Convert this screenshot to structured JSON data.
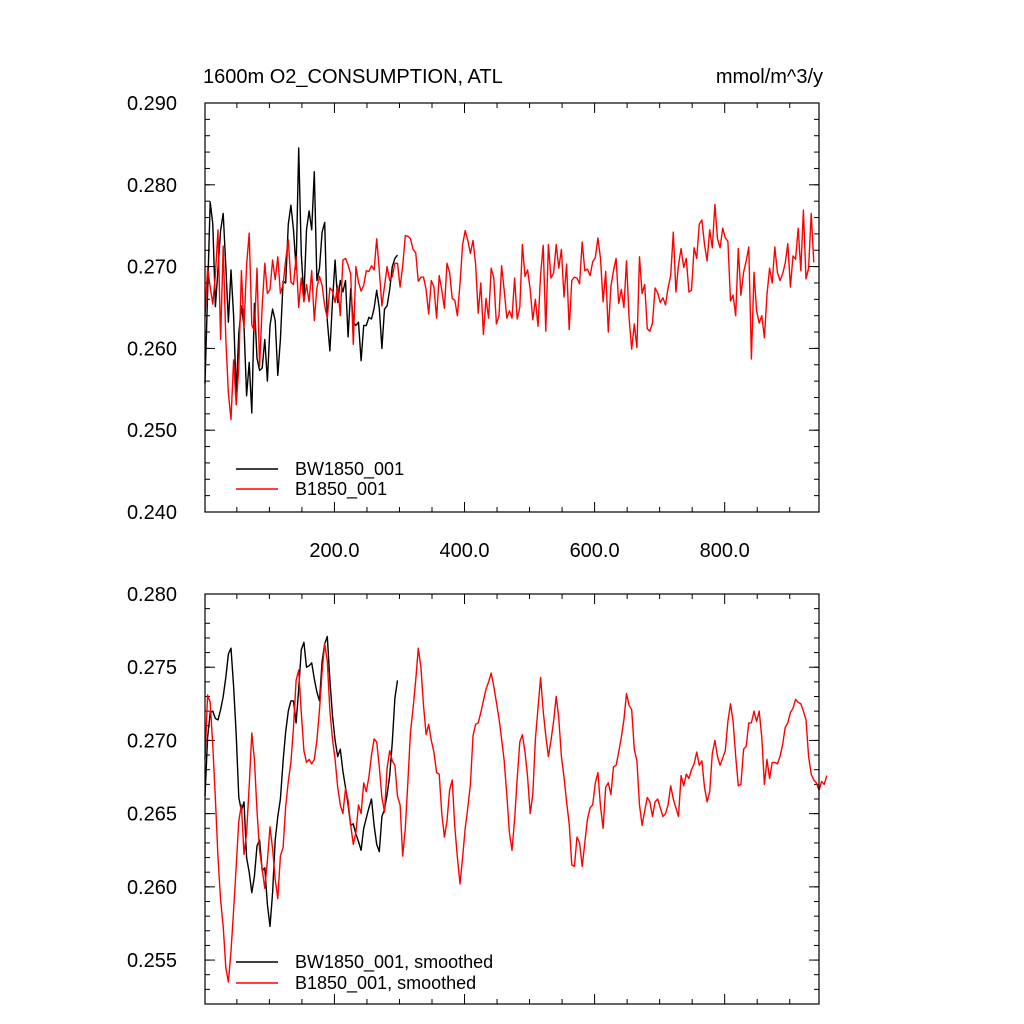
{
  "chart_data": [
    {
      "type": "line",
      "title_left": "1600m O2_CONSUMPTION, ATL",
      "title_right": "mmol/m^3/y",
      "xlim": [
        1,
        945
      ],
      "ylim": [
        0.24,
        0.29
      ],
      "x_ticks": [
        200,
        400,
        600,
        800
      ],
      "x_tick_labels": [
        "200.0",
        "400.0",
        "600.0",
        "800.0"
      ],
      "y_ticks": [
        0.24,
        0.25,
        0.26,
        0.27,
        0.28,
        0.29
      ],
      "y_tick_labels": [
        "0.240",
        "0.250",
        "0.260",
        "0.270",
        "0.280",
        "0.290"
      ],
      "legend_position": "bottom-left",
      "series": [
        {
          "name": "BW1850_001",
          "color": "#000000",
          "x_start": 1,
          "x_step": 4,
          "values": [
            0.2557,
            0.2668,
            0.2779,
            0.2752,
            0.2651,
            0.2697,
            0.2744,
            0.2765,
            0.2701,
            0.2632,
            0.2696,
            0.264,
            0.2545,
            0.2618,
            0.2652,
            0.2627,
            0.2542,
            0.2583,
            0.2521,
            0.2655,
            0.2588,
            0.2573,
            0.2576,
            0.2611,
            0.256,
            0.2628,
            0.2648,
            0.2634,
            0.2567,
            0.2611,
            0.2682,
            0.268,
            0.2752,
            0.2775,
            0.2745,
            0.2697,
            0.2845,
            0.2715,
            0.2662,
            0.2745,
            0.2768,
            0.2745,
            0.2816,
            0.2683,
            0.2698,
            0.2742,
            0.2754,
            0.2634,
            0.2597,
            0.2658,
            0.2708,
            0.2656,
            0.2683,
            0.2669,
            0.2683,
            0.2614,
            0.2673,
            0.2632,
            0.2628,
            0.2632,
            0.2585,
            0.2628,
            0.2628,
            0.2638,
            0.2636,
            0.2649,
            0.2671,
            0.2649,
            0.26,
            0.2648,
            0.2652,
            0.2672,
            0.27,
            0.271,
            0.2714
          ]
        },
        {
          "name": "B1850_001",
          "color": "#ff0000",
          "x_start": 1,
          "x_step": 4,
          "values": [
            0.2639,
            0.2698,
            0.2675,
            0.2654,
            0.269,
            0.2745,
            0.2611,
            0.2725,
            0.2612,
            0.2545,
            0.2513,
            0.2586,
            0.2531,
            0.2576,
            0.2695,
            0.2626,
            0.2702,
            0.2741,
            0.2629,
            0.2621,
            0.2698,
            0.2578,
            0.2652,
            0.2704,
            0.2667,
            0.2672,
            0.2708,
            0.2684,
            0.2712,
            0.2667,
            0.2678,
            0.2708,
            0.2733,
            0.2681,
            0.2678,
            0.2712,
            0.265,
            0.2686,
            0.2657,
            0.2678,
            0.2657,
            0.2695,
            0.2634,
            0.2674,
            0.2688,
            0.2677,
            0.2652,
            0.2637,
            0.2674,
            0.267,
            0.2656,
            0.2677,
            0.264,
            0.2708,
            0.271,
            0.2702,
            0.2691,
            0.2605,
            0.27,
            0.2681,
            0.267,
            0.2677,
            0.2695,
            0.2694,
            0.2701,
            0.2696,
            0.2734,
            0.2695,
            0.2652,
            0.2676,
            0.27,
            0.2683,
            0.2688,
            0.2704,
            0.2704,
            0.2675,
            0.2701,
            0.2738,
            0.2737,
            0.2734,
            0.2721,
            0.2717,
            0.2682,
            0.2687,
            0.2687,
            0.2672,
            0.2642,
            0.2683,
            0.2675,
            0.2637,
            0.2689,
            0.2671,
            0.2649,
            0.2704,
            0.2693,
            0.2661,
            0.2659,
            0.264,
            0.2679,
            0.2727,
            0.2744,
            0.2732,
            0.2716,
            0.2732,
            0.2703,
            0.2643,
            0.268,
            0.2617,
            0.2661,
            0.2637,
            0.2698,
            0.2686,
            0.263,
            0.264,
            0.2701,
            0.2671,
            0.2637,
            0.2646,
            0.2637,
            0.2686,
            0.2636,
            0.265,
            0.2727,
            0.2688,
            0.2696,
            0.2672,
            0.2635,
            0.266,
            0.2627,
            0.269,
            0.2726,
            0.2621,
            0.2727,
            0.2686,
            0.2692,
            0.2727,
            0.2698,
            0.2721,
            0.2663,
            0.2703,
            0.2623,
            0.2683,
            0.2687,
            0.2686,
            0.2679,
            0.273,
            0.2695,
            0.2697,
            0.2689,
            0.2706,
            0.2711,
            0.2735,
            0.271,
            0.2657,
            0.2694,
            0.262,
            0.2676,
            0.2695,
            0.271,
            0.2655,
            0.2672,
            0.265,
            0.2707,
            0.2637,
            0.2599,
            0.263,
            0.2601,
            0.2712,
            0.2667,
            0.2678,
            0.2624,
            0.2621,
            0.2631,
            0.2674,
            0.2668,
            0.2656,
            0.2662,
            0.2653,
            0.2674,
            0.2689,
            0.2742,
            0.2669,
            0.2702,
            0.2722,
            0.2699,
            0.271,
            0.2669,
            0.2671,
            0.2723,
            0.271,
            0.2752,
            0.2757,
            0.2727,
            0.2707,
            0.2745,
            0.2723,
            0.2776,
            0.2734,
            0.2723,
            0.2747,
            0.2735,
            0.2731,
            0.2658,
            0.2665,
            0.264,
            0.2722,
            0.2665,
            0.2693,
            0.2707,
            0.2724,
            0.2587,
            0.2693,
            0.2646,
            0.2631,
            0.264,
            0.2613,
            0.2666,
            0.2698,
            0.268,
            0.2724,
            0.2693,
            0.2683,
            0.2691,
            0.2704,
            0.2728,
            0.2675,
            0.2713,
            0.2709,
            0.2747,
            0.2695,
            0.2769,
            0.2685,
            0.2698,
            0.2765,
            0.2705
          ]
        }
      ]
    },
    {
      "type": "line",
      "xlim": [
        1,
        945
      ],
      "ylim": [
        0.252,
        0.28
      ],
      "x_ticks": [
        200,
        400,
        600,
        800
      ],
      "y_ticks": [
        0.255,
        0.26,
        0.265,
        0.27,
        0.275,
        0.28
      ],
      "y_tick_labels": [
        "0.255",
        "0.260",
        "0.265",
        "0.270",
        "0.275",
        "0.280"
      ],
      "legend_position": "bottom-left",
      "series": [
        {
          "name": "BW1850_001, smoothed",
          "color": "#000000",
          "x_start": 1,
          "x_step": 4,
          "values": [
            0.2662,
            0.2702,
            0.2719,
            0.272,
            0.2715,
            0.2714,
            0.2721,
            0.273,
            0.2743,
            0.2759,
            0.2763,
            0.2737,
            0.2704,
            0.2661,
            0.2652,
            0.2658,
            0.262,
            0.261,
            0.2596,
            0.2607,
            0.2628,
            0.2632,
            0.2611,
            0.2613,
            0.2588,
            0.2573,
            0.2596,
            0.2632,
            0.2648,
            0.266,
            0.2686,
            0.2706,
            0.272,
            0.2727,
            0.2727,
            0.2712,
            0.2735,
            0.2762,
            0.2767,
            0.275,
            0.2751,
            0.2753,
            0.2742,
            0.2733,
            0.2727,
            0.2754,
            0.2766,
            0.2771,
            0.2741,
            0.2717,
            0.27,
            0.2689,
            0.2694,
            0.2679,
            0.2668,
            0.2656,
            0.2642,
            0.2643,
            0.2636,
            0.2631,
            0.2625,
            0.264,
            0.2647,
            0.2654,
            0.266,
            0.2642,
            0.2629,
            0.2624,
            0.2648,
            0.2653,
            0.2663,
            0.2676,
            0.2699,
            0.2729,
            0.2741
          ]
        },
        {
          "name": "B1850_001, smoothed",
          "color": "#ff0000",
          "x_start": 1,
          "x_step": 4,
          "values": [
            0.2687,
            0.2731,
            0.2726,
            0.2696,
            0.266,
            0.262,
            0.2591,
            0.2573,
            0.2545,
            0.2535,
            0.2556,
            0.2584,
            0.2614,
            0.2645,
            0.2656,
            0.2622,
            0.2637,
            0.2669,
            0.2705,
            0.2687,
            0.2652,
            0.2625,
            0.2612,
            0.2599,
            0.2618,
            0.2641,
            0.2626,
            0.2605,
            0.2592,
            0.2621,
            0.2627,
            0.2655,
            0.2672,
            0.2685,
            0.2709,
            0.2741,
            0.2748,
            0.2719,
            0.2693,
            0.2685,
            0.2687,
            0.2684,
            0.2687,
            0.27,
            0.2721,
            0.2747,
            0.2766,
            0.2754,
            0.272,
            0.2701,
            0.2687,
            0.2668,
            0.2656,
            0.265,
            0.2667,
            0.2659,
            0.2642,
            0.2629,
            0.2637,
            0.2656,
            0.265,
            0.2671,
            0.2665,
            0.2675,
            0.269,
            0.2701,
            0.2699,
            0.2682,
            0.2661,
            0.2651,
            0.2681,
            0.2693,
            0.2686,
            0.2683,
            0.2662,
            0.2656,
            0.2621,
            0.264,
            0.2672,
            0.2706,
            0.2722,
            0.2741,
            0.2763,
            0.275,
            0.2724,
            0.2704,
            0.2711,
            0.27,
            0.2692,
            0.2678,
            0.2677,
            0.265,
            0.2634,
            0.2645,
            0.2666,
            0.2673,
            0.2641,
            0.262,
            0.2602,
            0.262,
            0.264,
            0.2654,
            0.267,
            0.2703,
            0.2711,
            0.2712,
            0.2719,
            0.2727,
            0.2735,
            0.274,
            0.2746,
            0.2737,
            0.2726,
            0.2715,
            0.2701,
            0.2686,
            0.2663,
            0.2637,
            0.2625,
            0.2646,
            0.2674,
            0.2699,
            0.2704,
            0.2692,
            0.2675,
            0.265,
            0.2663,
            0.2701,
            0.2722,
            0.2743,
            0.272,
            0.2703,
            0.2689,
            0.27,
            0.2713,
            0.273,
            0.2715,
            0.2689,
            0.2675,
            0.2658,
            0.2643,
            0.2615,
            0.2614,
            0.2634,
            0.263,
            0.2614,
            0.263,
            0.2646,
            0.2654,
            0.2656,
            0.2671,
            0.2678,
            0.2655,
            0.264,
            0.2668,
            0.2671,
            0.2663,
            0.2682,
            0.2683,
            0.2692,
            0.2702,
            0.2714,
            0.2732,
            0.2724,
            0.2721,
            0.2694,
            0.2686,
            0.2656,
            0.2642,
            0.2652,
            0.2661,
            0.2658,
            0.2648,
            0.2658,
            0.266,
            0.2654,
            0.2648,
            0.265,
            0.2656,
            0.2669,
            0.266,
            0.2654,
            0.2648,
            0.2676,
            0.2669,
            0.2677,
            0.2674,
            0.268,
            0.2684,
            0.2692,
            0.2683,
            0.2686,
            0.2668,
            0.2658,
            0.2665,
            0.2691,
            0.27,
            0.2689,
            0.2683,
            0.2688,
            0.2693,
            0.2713,
            0.2725,
            0.2713,
            0.2689,
            0.2669,
            0.267,
            0.2694,
            0.2696,
            0.2712,
            0.2712,
            0.272,
            0.2713,
            0.272,
            0.2702,
            0.267,
            0.2687,
            0.2674,
            0.2685,
            0.2685,
            0.2684,
            0.2689,
            0.2697,
            0.2709,
            0.2712,
            0.2719,
            0.2722,
            0.2728,
            0.2726,
            0.2725,
            0.272,
            0.2714,
            0.2689,
            0.2677,
            0.2673,
            0.2671,
            0.2666,
            0.2672,
            0.267,
            0.2676
          ]
        }
      ]
    }
  ]
}
